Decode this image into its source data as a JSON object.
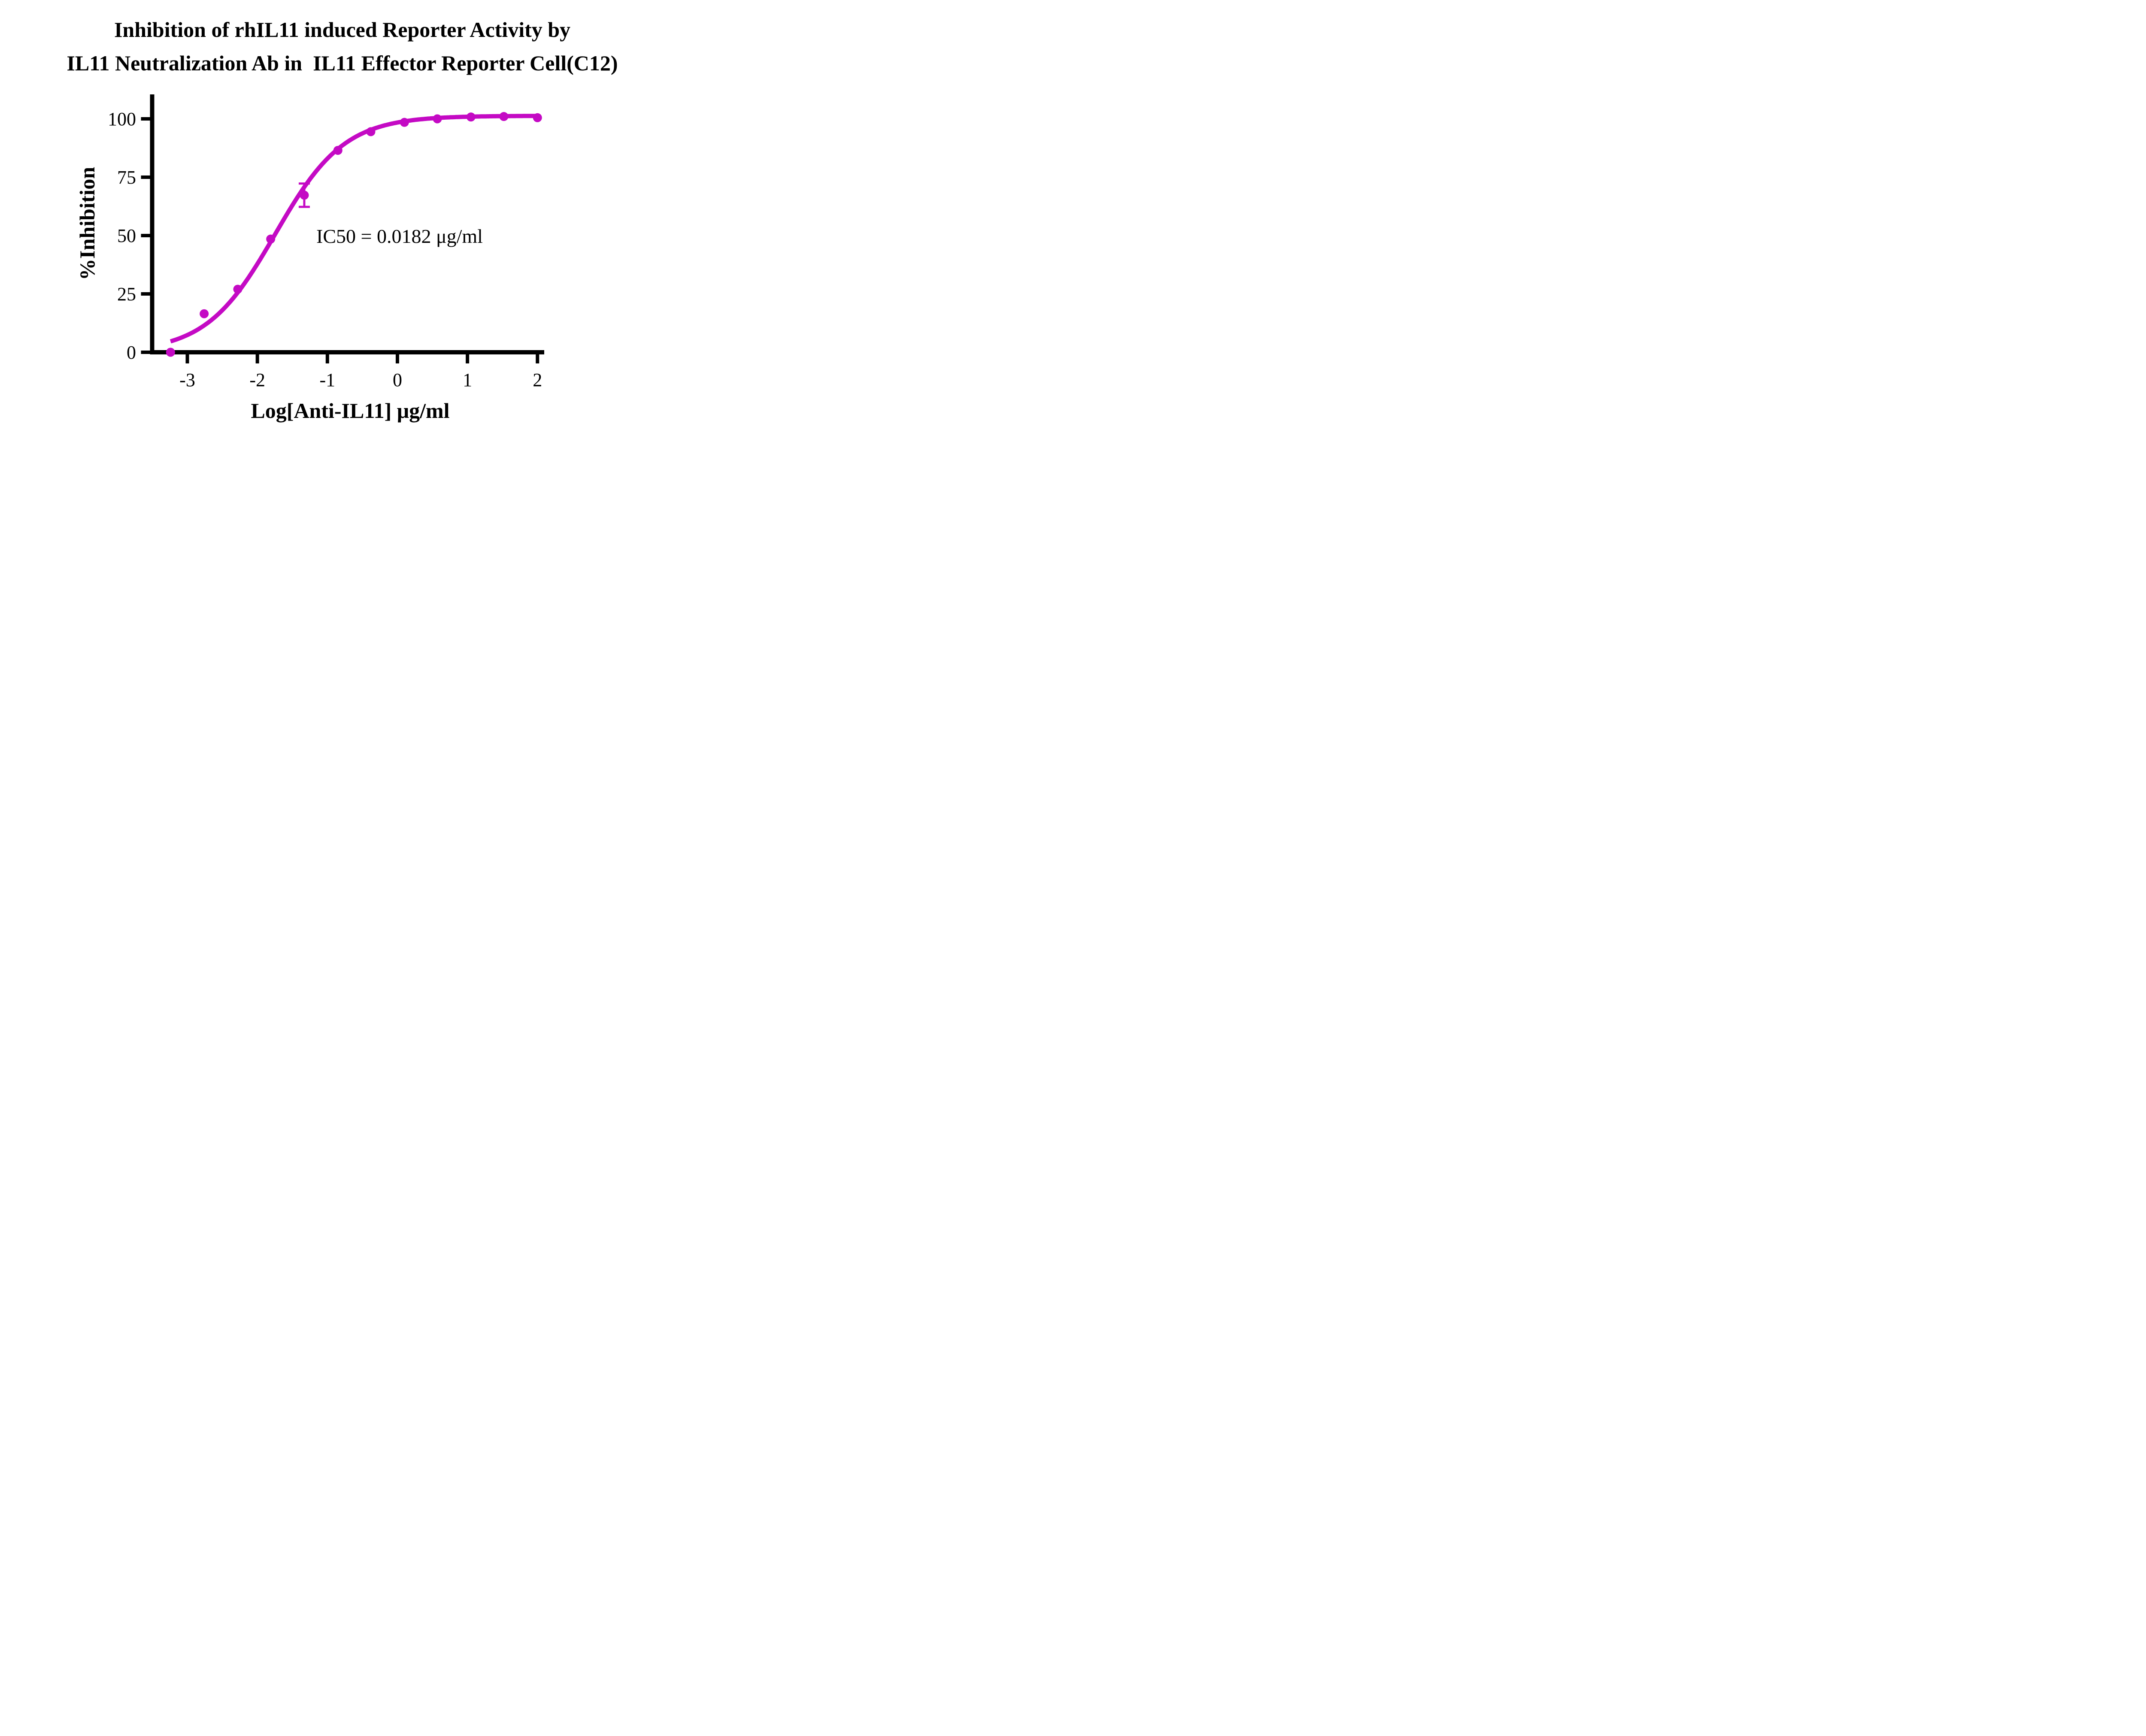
{
  "title": {
    "line1": "Inhibition of rhIL11 induced Reporter Activity by",
    "line2": "IL11 Neutralization Ab in  IL11 Effector Reporter Cell(C12)"
  },
  "annotation": {
    "ic50": "IC50 = 0.0182 μg/ml"
  },
  "chart_data": {
    "type": "scatter",
    "title": "Inhibition of rhIL11 induced Reporter Activity by IL11 Neutralization Ab in IL11 Effector Reporter Cell(C12)",
    "xlabel": "Log[Anti-IL11] μg/ml",
    "ylabel": "%Inhibition",
    "xlim": [
      -3.53,
      2.1
    ],
    "ylim": [
      0,
      110.5
    ],
    "x_ticks": [
      -3,
      -2,
      -1,
      0,
      1,
      2
    ],
    "y_ticks": [
      0,
      25,
      50,
      75,
      100
    ],
    "grid": false,
    "legend": "none",
    "series_color": "#C40AC4",
    "points": [
      {
        "x": -3.24,
        "y": 0
      },
      {
        "x": -2.76,
        "y": 16.5
      },
      {
        "x": -2.28,
        "y": 27
      },
      {
        "x": -1.81,
        "y": 48.5
      },
      {
        "x": -1.33,
        "y": 67.3,
        "error": 5
      },
      {
        "x": -0.85,
        "y": 86.5
      },
      {
        "x": -0.38,
        "y": 94.5
      },
      {
        "x": 0.1,
        "y": 98.5
      },
      {
        "x": 0.57,
        "y": 100
      },
      {
        "x": 1.05,
        "y": 100.8
      },
      {
        "x": 1.52,
        "y": 101
      },
      {
        "x": 2.0,
        "y": 100.5
      }
    ],
    "fit_curve": {
      "model": "4PL",
      "bottom": 0,
      "top": 101.3,
      "log_ic50": -1.745,
      "hill": 0.88,
      "ic50_ug_ml": 0.0182
    }
  }
}
